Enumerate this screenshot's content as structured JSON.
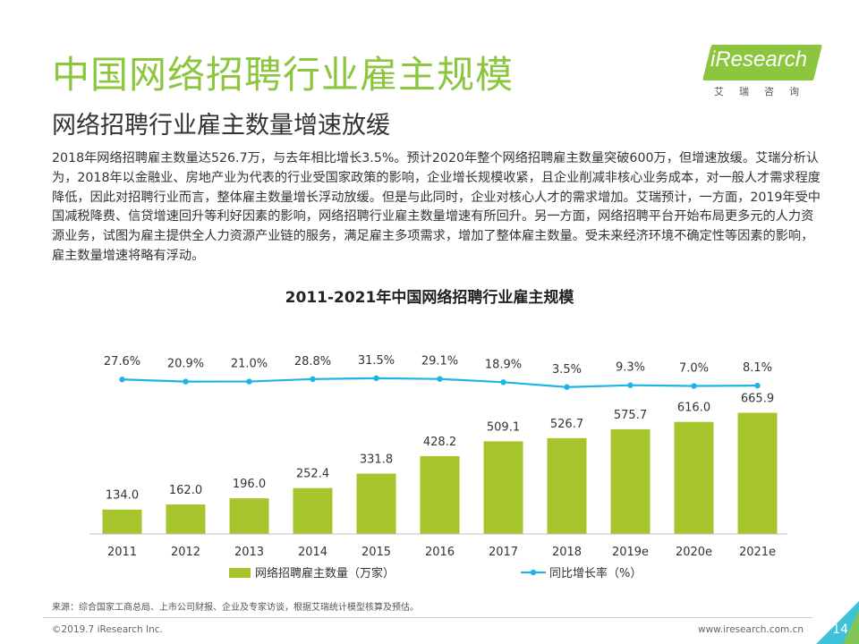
{
  "header": {
    "title": "中国网络招聘行业雇主规模",
    "subtitle": "网络招聘行业雇主数量增速放缓"
  },
  "logo": {
    "brand": "iResearch",
    "tagline": "艾瑞咨询"
  },
  "body_text": "2018年网络招聘雇主数量达526.7万，与去年相比增长3.5%。预计2020年整个网络招聘雇主数量突破600万，但增速放缓。艾瑞分析认为，2018年以金融业、房地产业为代表的行业受国家政策的影响，企业增长规模收紧，且企业削减非核心业务成本，对一般人才需求程度降低，因此对招聘行业而言，整体雇主数量增长浮动放缓。但是与此同时，企业对核心人才的需求增加。艾瑞预计，一方面，2019年受中国减税降费、信贷增速回升等利好因素的影响，网络招聘行业雇主数量增速有所回升。另一方面，网络招聘平台开始布局更多元的人力资源业务，试图为雇主提供全人力资源产业链的服务，满足雇主多项需求，增加了整体雇主数量。受未来经济环境不确定性等因素的影响，雇主数量增速将略有浮动。",
  "chart_data": {
    "type": "bar",
    "title": "2011-2021年中国网络招聘行业雇主规模",
    "categories": [
      "2011",
      "2012",
      "2013",
      "2014",
      "2015",
      "2016",
      "2017",
      "2018",
      "2019e",
      "2020e",
      "2021e"
    ],
    "series": [
      {
        "name": "网络招聘雇主数量（万家）",
        "type": "bar",
        "color": "#a6c52c",
        "values": [
          134.0,
          162.0,
          196.0,
          252.4,
          331.8,
          428.2,
          509.1,
          526.7,
          575.7,
          616.0,
          665.9
        ],
        "labels": [
          "134.0",
          "162.0",
          "196.0",
          "252.4",
          "331.8",
          "428.2",
          "509.1",
          "526.7",
          "575.7",
          "616.0",
          "665.9"
        ]
      },
      {
        "name": "同比增长率（%）",
        "type": "line",
        "color": "#1fb4e6",
        "values": [
          27.6,
          20.9,
          21.0,
          28.8,
          31.5,
          29.1,
          18.9,
          3.5,
          9.3,
          7.0,
          8.1
        ],
        "labels": [
          "27.6%",
          "20.9%",
          "21.0%",
          "28.8%",
          "31.5%",
          "29.1%",
          "18.9%",
          "3.5%",
          "9.3%",
          "7.0%",
          "8.1%"
        ]
      }
    ],
    "legend": "bottom",
    "grid": false
  },
  "source": "来源：综合国家工商总局、上市公司财报、企业及专家访谈，根据艾瑞统计模型核算及预估。",
  "footer": {
    "copyright": "©2019.7 iResearch Inc.",
    "website": "www.iresearch.com.cn",
    "page": "14"
  }
}
